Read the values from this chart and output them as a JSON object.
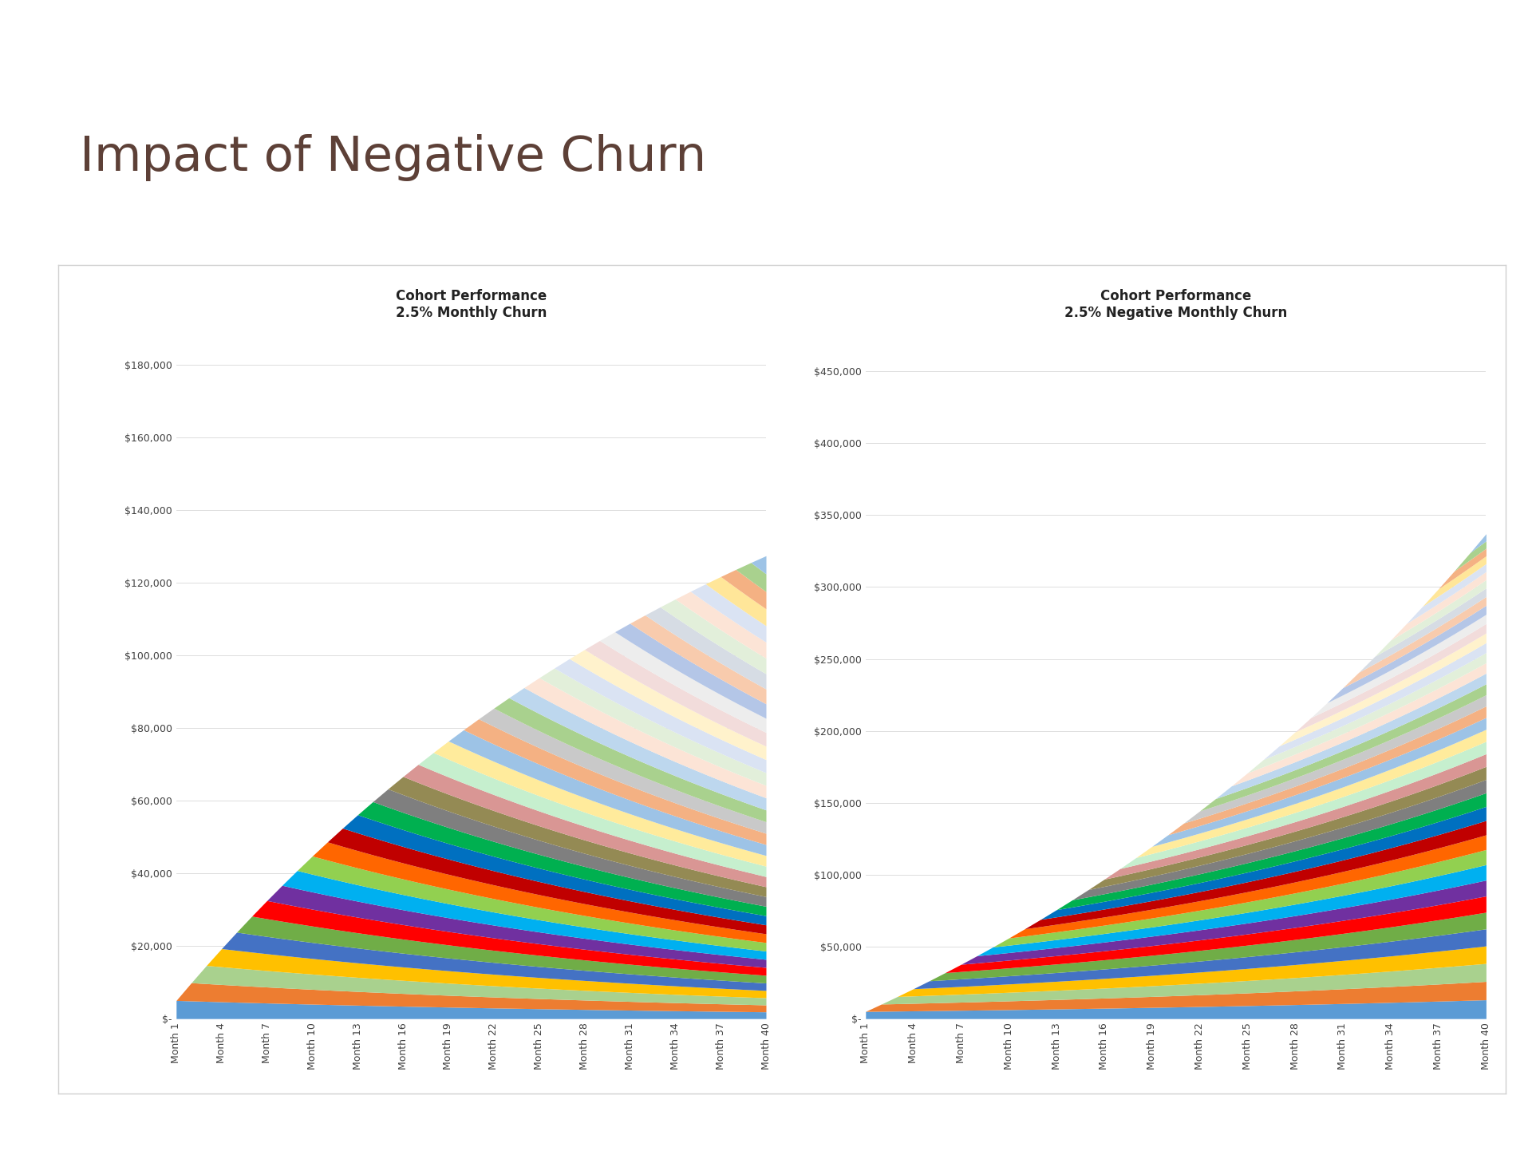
{
  "title": "Impact of Negative Churn",
  "title_color": "#5d4037",
  "title_fontsize": 44,
  "background_color": "#ffffff",
  "header_bar_color": "#7fa8c0",
  "chart1_title": "Cohort Performance\n2.5% Monthly Churn",
  "chart2_title": "Cohort Performance\n2.5% Negative Monthly Churn",
  "chart1_yticks": [
    0,
    20000,
    40000,
    60000,
    80000,
    100000,
    120000,
    140000,
    160000,
    180000
  ],
  "chart2_yticks": [
    0,
    50000,
    100000,
    150000,
    200000,
    250000,
    300000,
    350000,
    400000,
    450000
  ],
  "chart1_ylim": 190000,
  "chart2_ylim": 480000,
  "months": 40,
  "initial_cohort_mrr": 5000,
  "churn_rate": 0.025,
  "growth_rate": 0.025,
  "num_cohorts": 40,
  "colors": [
    "#5b9bd5",
    "#ed7d31",
    "#a9d18e",
    "#ffc000",
    "#4472c4",
    "#70ad47",
    "#ff0000",
    "#7030a0",
    "#00b0f0",
    "#92d050",
    "#ff6600",
    "#c00000",
    "#0070c0",
    "#00b050",
    "#7f7f7f",
    "#948a54",
    "#d99694",
    "#c6efce",
    "#ffeb9c",
    "#9dc3e6",
    "#f4b183",
    "#c9c9c9",
    "#a9d18e",
    "#bdd7ee",
    "#fce4d6",
    "#e2efda",
    "#dae3f3",
    "#fff2cc",
    "#f2dcdb",
    "#ededed",
    "#b4c6e7",
    "#f8cbad",
    "#d6dce4",
    "#e2efda",
    "#fce4d6",
    "#dae3f3",
    "#ffe699",
    "#f4b183",
    "#a9d18e",
    "#9dc3e6"
  ],
  "outer_box_color": "#d0d0d0",
  "grid_color": "#d8d8d8",
  "tick_label_color": "#404040",
  "axis_label_fontsize": 9,
  "title_chart_fontsize": 12
}
